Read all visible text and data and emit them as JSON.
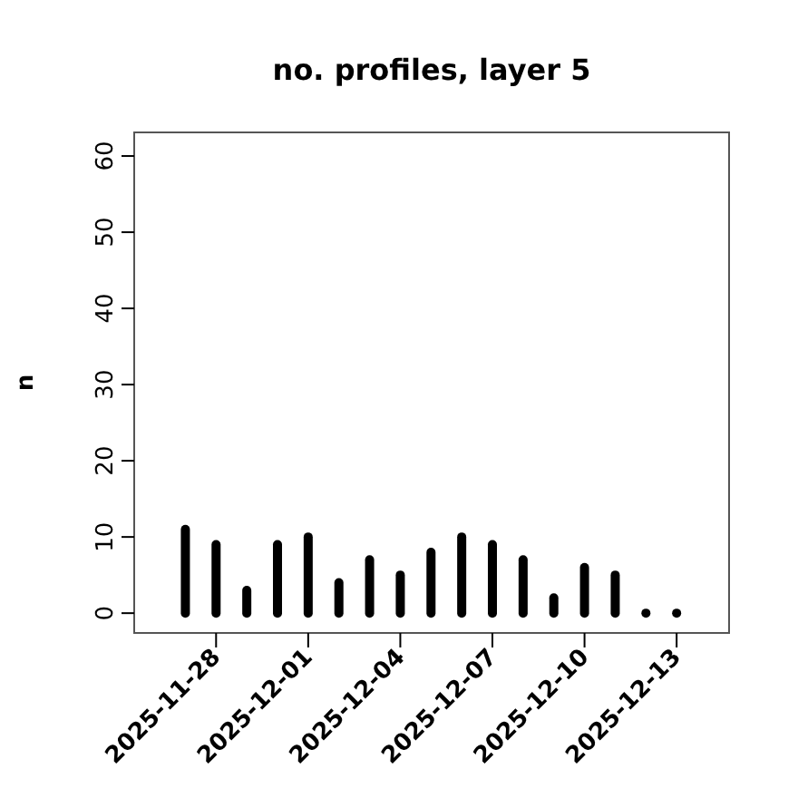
{
  "chart_data": {
    "type": "bar",
    "title": "no. profiles, layer 5",
    "ylabel": "n",
    "x": [
      "2025-11-27",
      "2025-11-28",
      "2025-11-29",
      "2025-11-30",
      "2025-12-01",
      "2025-12-02",
      "2025-12-03",
      "2025-12-04",
      "2025-12-05",
      "2025-12-06",
      "2025-12-07",
      "2025-12-08",
      "2025-12-09",
      "2025-12-10",
      "2025-12-11",
      "2025-12-12",
      "2025-12-13"
    ],
    "values": [
      11,
      9,
      3,
      9,
      10,
      4,
      7,
      5,
      8,
      10,
      9,
      7,
      2,
      6,
      5,
      0,
      0
    ],
    "color": "#000000",
    "xlim": [
      "2025-11-25T08:00",
      "2025-12-14T17:00"
    ],
    "xticks": [
      {
        "value": "2025-11-28",
        "label": "2025-11-28"
      },
      {
        "value": "2025-12-01",
        "label": "2025-12-01"
      },
      {
        "value": "2025-12-04",
        "label": "2025-12-04"
      },
      {
        "value": "2025-12-07",
        "label": "2025-12-07"
      },
      {
        "value": "2025-12-10",
        "label": "2025-12-10"
      },
      {
        "value": "2025-12-13",
        "label": "2025-12-13"
      }
    ],
    "ylim": [
      -2.6,
      63.1
    ],
    "yticks": [
      0,
      10,
      20,
      30,
      40,
      50,
      60
    ],
    "grid": false
  }
}
